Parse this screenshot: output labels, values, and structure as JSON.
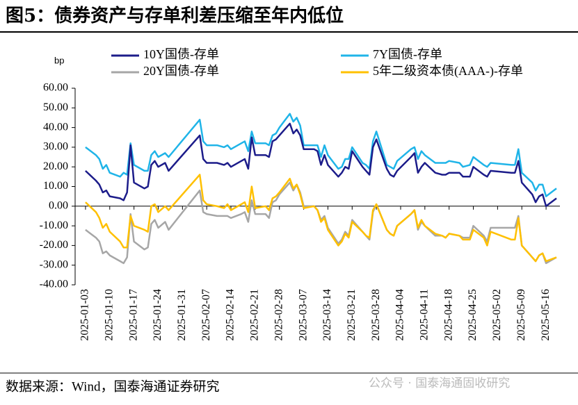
{
  "chart_data": {
    "type": "line",
    "title": "图5：债券资产与存单利差压缩至年内低位",
    "y_unit": "bp",
    "source": "数据来源：Wind，国泰海通证券研究",
    "watermark": "公众号 · 国泰海通固收研究",
    "x": [
      "2025-01-03",
      "2025-01-06",
      "2025-01-07",
      "2025-01-08",
      "2025-01-09",
      "2025-01-10",
      "2025-01-13",
      "2025-01-14",
      "2025-01-15",
      "2025-01-16",
      "2025-01-17",
      "2025-01-20",
      "2025-01-21",
      "2025-01-22",
      "2025-01-23",
      "2025-01-24",
      "2025-01-26",
      "2025-01-27",
      "2025-02-05",
      "2025-02-06",
      "2025-02-07",
      "2025-02-10",
      "2025-02-12",
      "2025-02-13",
      "2025-02-14",
      "2025-02-17",
      "2025-02-18",
      "2025-02-19",
      "2025-02-20",
      "2025-02-21",
      "2025-02-24",
      "2025-02-25",
      "2025-02-26",
      "2025-02-27",
      "2025-02-28",
      "2025-03-03",
      "2025-03-04",
      "2025-03-05",
      "2025-03-06",
      "2025-03-07",
      "2025-03-10",
      "2025-03-11",
      "2025-03-12",
      "2025-03-13",
      "2025-03-14",
      "2025-03-17",
      "2025-03-18",
      "2025-03-19",
      "2025-03-20",
      "2025-03-21",
      "2025-03-24",
      "2025-03-25",
      "2025-03-26",
      "2025-03-27",
      "2025-03-28",
      "2025-03-31",
      "2025-04-01",
      "2025-04-02",
      "2025-04-03",
      "2025-04-07",
      "2025-04-08",
      "2025-04-09",
      "2025-04-10",
      "2025-04-11",
      "2025-04-14",
      "2025-04-16",
      "2025-04-17",
      "2025-04-18",
      "2025-04-21",
      "2025-04-22",
      "2025-04-24",
      "2025-04-25",
      "2025-04-28",
      "2025-04-29",
      "2025-04-30",
      "2025-05-06",
      "2025-05-07",
      "2025-05-08",
      "2025-05-09",
      "2025-05-12",
      "2025-05-13",
      "2025-05-14",
      "2025-05-15",
      "2025-05-16",
      "2025-05-19"
    ],
    "series": [
      {
        "name": "10Y国债-存单",
        "color": "#1c1c8a",
        "values": [
          18,
          13,
          11,
          7,
          8,
          5,
          4,
          3,
          7,
          31,
          12,
          9,
          10,
          21,
          23,
          20,
          22,
          18,
          36,
          24,
          22,
          22,
          21,
          22,
          20,
          23,
          24,
          19,
          35,
          26,
          26,
          25,
          33,
          34,
          36,
          42,
          37,
          39,
          36,
          29,
          29,
          28,
          21,
          26,
          21,
          15,
          17,
          20,
          19,
          28,
          20,
          18,
          16,
          30,
          34,
          19,
          16,
          15,
          18,
          25,
          27,
          17,
          20,
          22,
          17,
          16,
          16,
          17,
          17,
          15,
          15,
          20,
          16,
          15,
          18,
          17,
          17,
          23,
          12,
          6,
          2,
          5,
          6,
          0,
          4
        ]
      },
      {
        "name": "7Y国债-存单",
        "color": "#1fb4e8",
        "values": [
          30,
          26,
          24,
          19,
          21,
          17,
          15,
          17,
          16,
          32,
          21,
          18,
          18,
          26,
          28,
          25,
          27,
          25,
          44,
          33,
          31,
          31,
          30,
          31,
          29,
          32,
          33,
          28,
          38,
          32,
          32,
          31,
          36,
          37,
          40,
          47,
          43,
          45,
          41,
          31,
          31,
          31,
          25,
          31,
          26,
          19,
          20,
          24,
          24,
          30,
          22,
          21,
          19,
          33,
          38,
          21,
          20,
          19,
          23,
          29,
          30,
          24,
          28,
          26,
          22,
          22,
          22,
          23,
          22,
          20,
          21,
          25,
          21,
          20,
          22,
          21,
          21,
          29,
          17,
          12,
          8,
          11,
          11,
          5,
          9
        ]
      },
      {
        "name": "20Y国债-存单",
        "color": "#a6a6a6",
        "values": [
          -12,
          -16,
          -18,
          -24,
          -23,
          -25,
          -28,
          -29,
          -26,
          -4,
          -18,
          -22,
          -21,
          -9,
          -7,
          -11,
          -8,
          -12,
          8,
          -3,
          -4,
          -5,
          -5,
          -5,
          -6,
          -4,
          -3,
          -8,
          3,
          -4,
          -4,
          -6,
          2,
          3,
          6,
          12,
          8,
          11,
          7,
          0,
          0,
          -2,
          -7,
          -5,
          -11,
          -19,
          -17,
          -13,
          -15,
          -7,
          -13,
          -15,
          -17,
          -3,
          1,
          -12,
          -14,
          -15,
          -10,
          -4,
          -2,
          -12,
          -8,
          -10,
          -15,
          -15,
          -16,
          -14,
          -15,
          -16,
          -16,
          -10,
          -15,
          -18,
          -11,
          -11,
          -11,
          -5,
          -20,
          -26,
          -28,
          -25,
          -24,
          -29,
          -26
        ]
      },
      {
        "name": "5年二级资本债(AAA-)-存单",
        "color": "#ffc000",
        "values": [
          2,
          -3,
          -6,
          -11,
          -9,
          -13,
          -18,
          -21,
          -21,
          -5,
          -10,
          -12,
          -13,
          0,
          1,
          -3,
          0,
          -2,
          16,
          3,
          1,
          0,
          -1,
          1,
          -2,
          1,
          2,
          -3,
          10,
          -1,
          0,
          -2,
          4,
          5,
          7,
          14,
          9,
          11,
          6,
          -1,
          0,
          -2,
          -8,
          -6,
          -12,
          -20,
          -18,
          -14,
          -16,
          -8,
          -13,
          -15,
          -16,
          -2,
          1,
          -12,
          -14,
          -15,
          -10,
          -4,
          -2,
          -11,
          -7,
          -10,
          -14,
          -15,
          -16,
          -14,
          -15,
          -17,
          -17,
          -12,
          -16,
          -20,
          -13,
          -17,
          -17,
          -6,
          -20,
          -26,
          -28,
          -25,
          -24,
          -28,
          -26
        ]
      }
    ],
    "xlim": [
      "2024-12-31",
      "2025-05-20"
    ],
    "xticks": [
      "2025-01-03",
      "2025-01-10",
      "2025-01-17",
      "2025-01-24",
      "2025-01-31",
      "2025-02-07",
      "2025-02-14",
      "2025-02-21",
      "2025-02-28",
      "2025-03-07",
      "2025-03-14",
      "2025-03-21",
      "2025-03-28",
      "2025-04-04",
      "2025-04-11",
      "2025-04-18",
      "2025-04-25",
      "2025-05-02",
      "2025-05-09",
      "2025-05-16"
    ],
    "ylim": [
      -40,
      60
    ],
    "yticks": [
      {
        "value": -40,
        "label": "-40.00"
      },
      {
        "value": -30,
        "label": "-30.00"
      },
      {
        "value": -20,
        "label": "-20.00"
      },
      {
        "value": -10,
        "label": "-10.00"
      },
      {
        "value": 0,
        "label": "0.00"
      },
      {
        "value": 10,
        "label": "10.00"
      },
      {
        "value": 20,
        "label": "20.00"
      },
      {
        "value": 30,
        "label": "30.00"
      },
      {
        "value": 40,
        "label": "40.00"
      },
      {
        "value": 50,
        "label": "50.00"
      },
      {
        "value": 60,
        "label": "60.00"
      }
    ],
    "grid": false
  }
}
